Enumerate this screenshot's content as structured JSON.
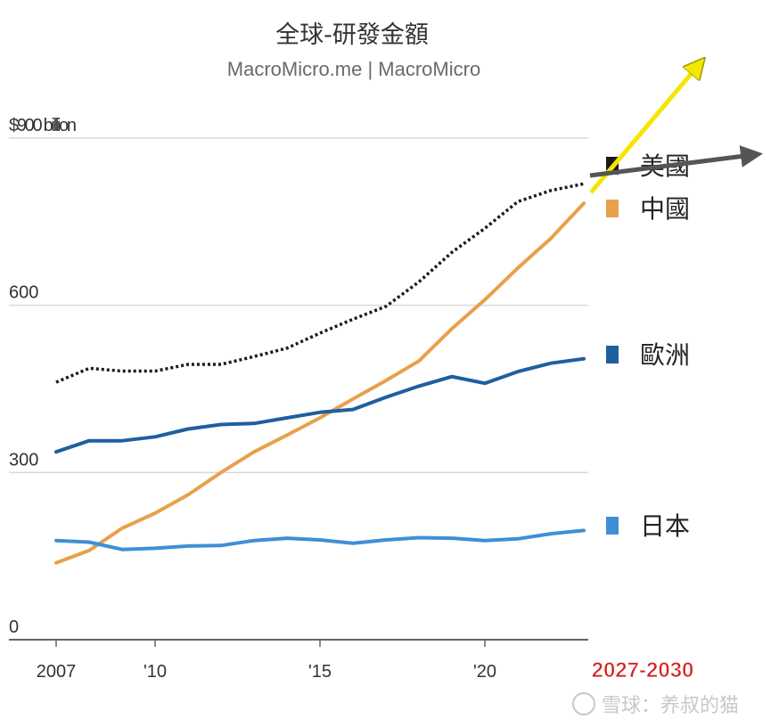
{
  "chart_data": {
    "type": "line",
    "title": "全球-研發金額",
    "subtitle": "MacroMicro.me | MacroMicro",
    "y_top_label": "$900 billion",
    "ylim": [
      0,
      900
    ],
    "y_ticks": [
      {
        "value": 0,
        "label": "0"
      },
      {
        "value": 300,
        "label": "300"
      },
      {
        "value": 600,
        "label": "600"
      },
      {
        "value": 900,
        "label": "$900 billion"
      }
    ],
    "xlim": [
      2007,
      2023
    ],
    "x_ticks": [
      {
        "value": 2007,
        "label": "2007"
      },
      {
        "value": 2010,
        "label": "'10"
      },
      {
        "value": 2015,
        "label": "'15"
      },
      {
        "value": 2020,
        "label": "'20"
      }
    ],
    "grid": true,
    "series": [
      {
        "name": "美國",
        "color": "#1a1a1a",
        "style": "dotted",
        "x": [
          2007,
          2008,
          2009,
          2010,
          2011,
          2012,
          2013,
          2014,
          2015,
          2016,
          2017,
          2018,
          2019,
          2020,
          2021,
          2022,
          2023
        ],
        "values": [
          462,
          487,
          482,
          482,
          494,
          494,
          508,
          523,
          550,
          575,
          598,
          642,
          695,
          738,
          786,
          806,
          818
        ]
      },
      {
        "name": "中國",
        "color": "#e8a04a",
        "style": "solid",
        "x": [
          2007,
          2008,
          2009,
          2010,
          2011,
          2012,
          2013,
          2014,
          2015,
          2016,
          2017,
          2018,
          2019,
          2020,
          2021,
          2022,
          2023
        ],
        "values": [
          138,
          160,
          200,
          227,
          260,
          300,
          337,
          367,
          398,
          432,
          465,
          500,
          558,
          610,
          667,
          720,
          783
        ]
      },
      {
        "name": "歐洲",
        "color": "#1f5fa0",
        "style": "solid",
        "x": [
          2007,
          2008,
          2009,
          2010,
          2011,
          2012,
          2013,
          2014,
          2015,
          2016,
          2017,
          2018,
          2019,
          2020,
          2021,
          2022,
          2023
        ],
        "values": [
          337,
          357,
          357,
          364,
          378,
          386,
          388,
          398,
          408,
          413,
          435,
          455,
          472,
          460,
          481,
          496,
          504
        ]
      },
      {
        "name": "日本",
        "color": "#3e8fd6",
        "style": "solid",
        "x": [
          2007,
          2008,
          2009,
          2010,
          2011,
          2012,
          2013,
          2014,
          2015,
          2016,
          2017,
          2018,
          2019,
          2020,
          2021,
          2022,
          2023
        ],
        "values": [
          178,
          175,
          162,
          164,
          168,
          169,
          178,
          182,
          179,
          173,
          179,
          183,
          182,
          178,
          181,
          190,
          196
        ]
      }
    ],
    "annotations": {
      "period_label": "2027-2030",
      "period_label_color": "#d62020",
      "arrow_1_color": "#f5e600",
      "arrow_2_color": "#555555"
    },
    "watermark": "雪球：养叔的猫"
  }
}
